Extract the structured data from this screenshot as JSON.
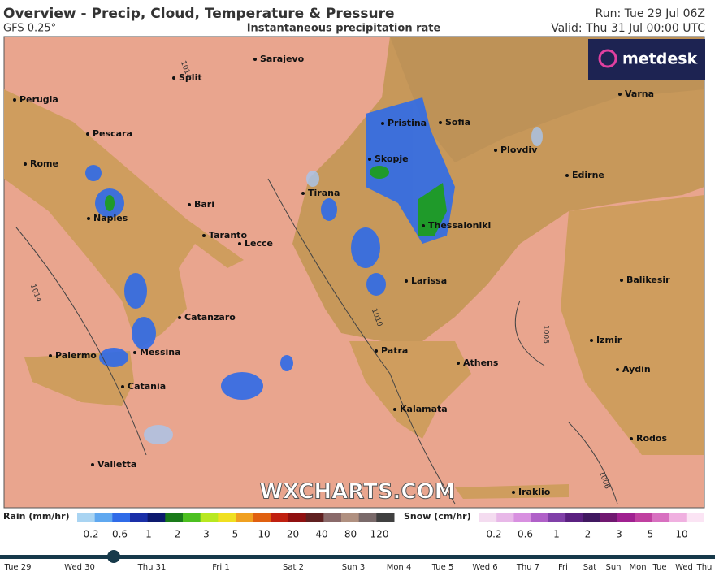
{
  "header": {
    "title": "Overview - Precip, Cloud, Temperature & Pressure",
    "model": "GFS 0.25°",
    "layer": "Instantaneous precipitation rate",
    "run": "Run: Tue 29 Jul 06Z",
    "valid": "Valid: Thu 31 Jul 00:00 UTC"
  },
  "logo": "metdesk",
  "watermark": "WXCHARTS.COM",
  "cities": [
    "Sarajevo",
    "Split",
    "Perugia",
    "Pescara",
    "Pristina",
    "Sofia",
    "Plovdiv",
    "Varna",
    "Rome",
    "Skopje",
    "Edirne",
    "Tirana",
    "Bari",
    "Naples",
    "Thessaloniki",
    "Taranto",
    "Lecce",
    "Larissa",
    "Balikesir",
    "Catanzaro",
    "Izmir",
    "Palermo",
    "Messina",
    "Patra",
    "Athens",
    "Aydin",
    "Catania",
    "Kalamata",
    "Rodos",
    "Valletta",
    "Iraklio"
  ],
  "isobars": [
    "1014",
    "1014",
    "1010",
    "1006",
    "1008"
  ],
  "legend": {
    "rain": {
      "label": "Rain (mm/hr)",
      "ticks": [
        "0.2",
        "0.6",
        "1",
        "2",
        "3",
        "5",
        "10",
        "20",
        "40",
        "80",
        "120"
      ]
    },
    "snow": {
      "label": "Snow (cm/hr)",
      "ticks": [
        "0.2",
        "0.6",
        "1",
        "2",
        "3",
        "5",
        "10"
      ]
    }
  },
  "timeline": [
    "Tue 29",
    "Wed 30",
    "Thu 31",
    "Fri 1",
    "Sat 2",
    "Sun 3",
    "Mon 4",
    "Tue 5",
    "Wed 6",
    "Thu 7",
    "Fri",
    "Sat",
    "Sun",
    "Mon",
    "Tue",
    "Wed",
    "Thu"
  ]
}
